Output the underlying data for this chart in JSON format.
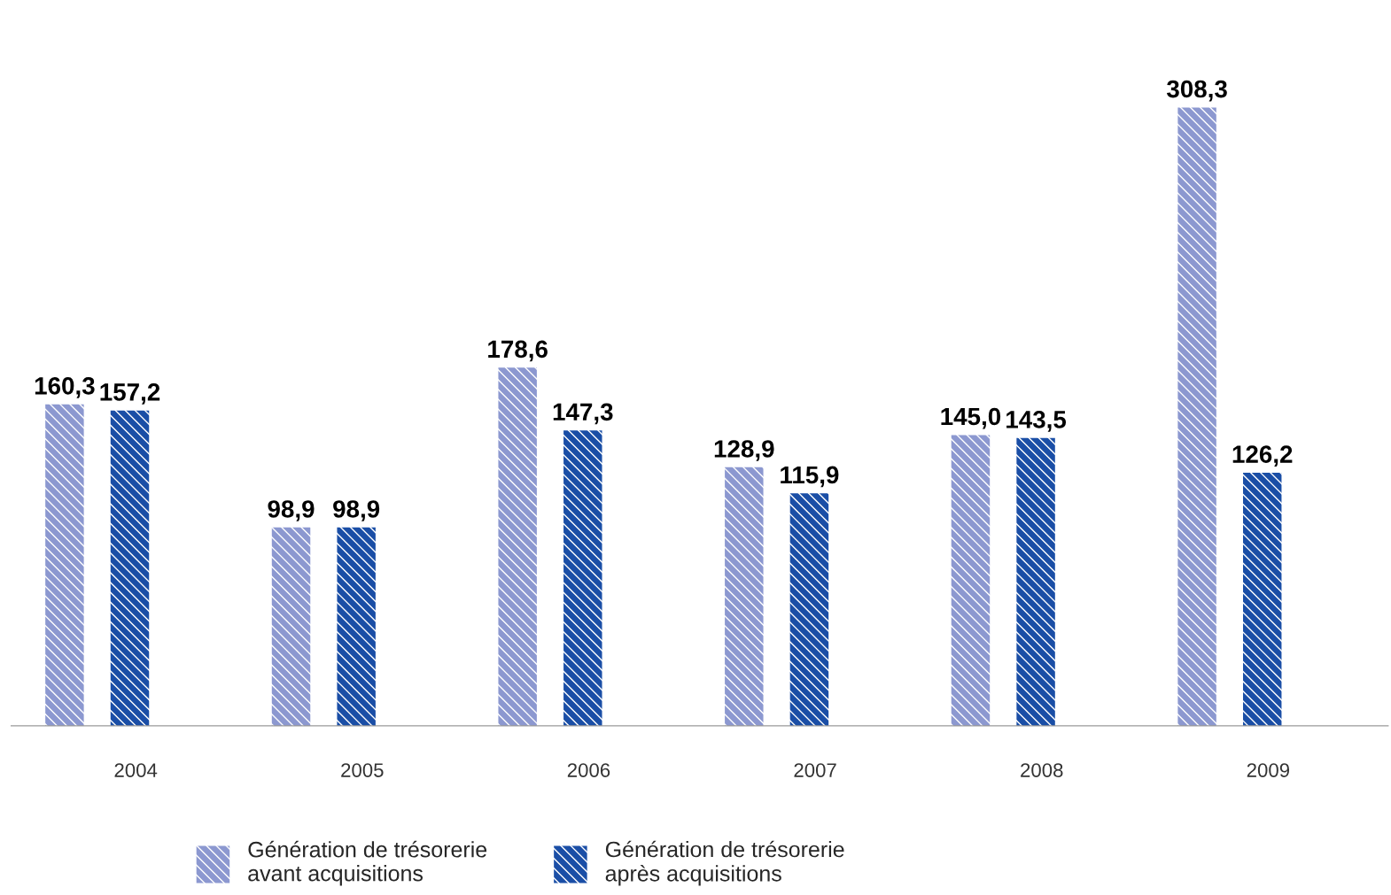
{
  "chart_data": {
    "type": "bar",
    "categories": [
      "2004",
      "2005",
      "2006",
      "2007",
      "2008",
      "2009"
    ],
    "series": [
      {
        "name": "Génération de trésorerie\navant acquisitions",
        "color": "#8c98d0",
        "values": [
          160.3,
          98.9,
          178.6,
          128.9,
          145.0,
          308.3
        ],
        "value_labels": [
          "160,3",
          "98,9",
          "178,6",
          "128,9",
          "145,0",
          "308,3"
        ]
      },
      {
        "name": "Génération de trésorerie\naprès acquisitions",
        "color": "#1a4ea6",
        "values": [
          157.2,
          98.9,
          147.3,
          115.9,
          143.5,
          126.2
        ],
        "value_labels": [
          "157,2",
          "98,9",
          "147,3",
          "115,9",
          "143,5",
          "126,2"
        ]
      }
    ],
    "legend": "bottom",
    "grid": false
  }
}
